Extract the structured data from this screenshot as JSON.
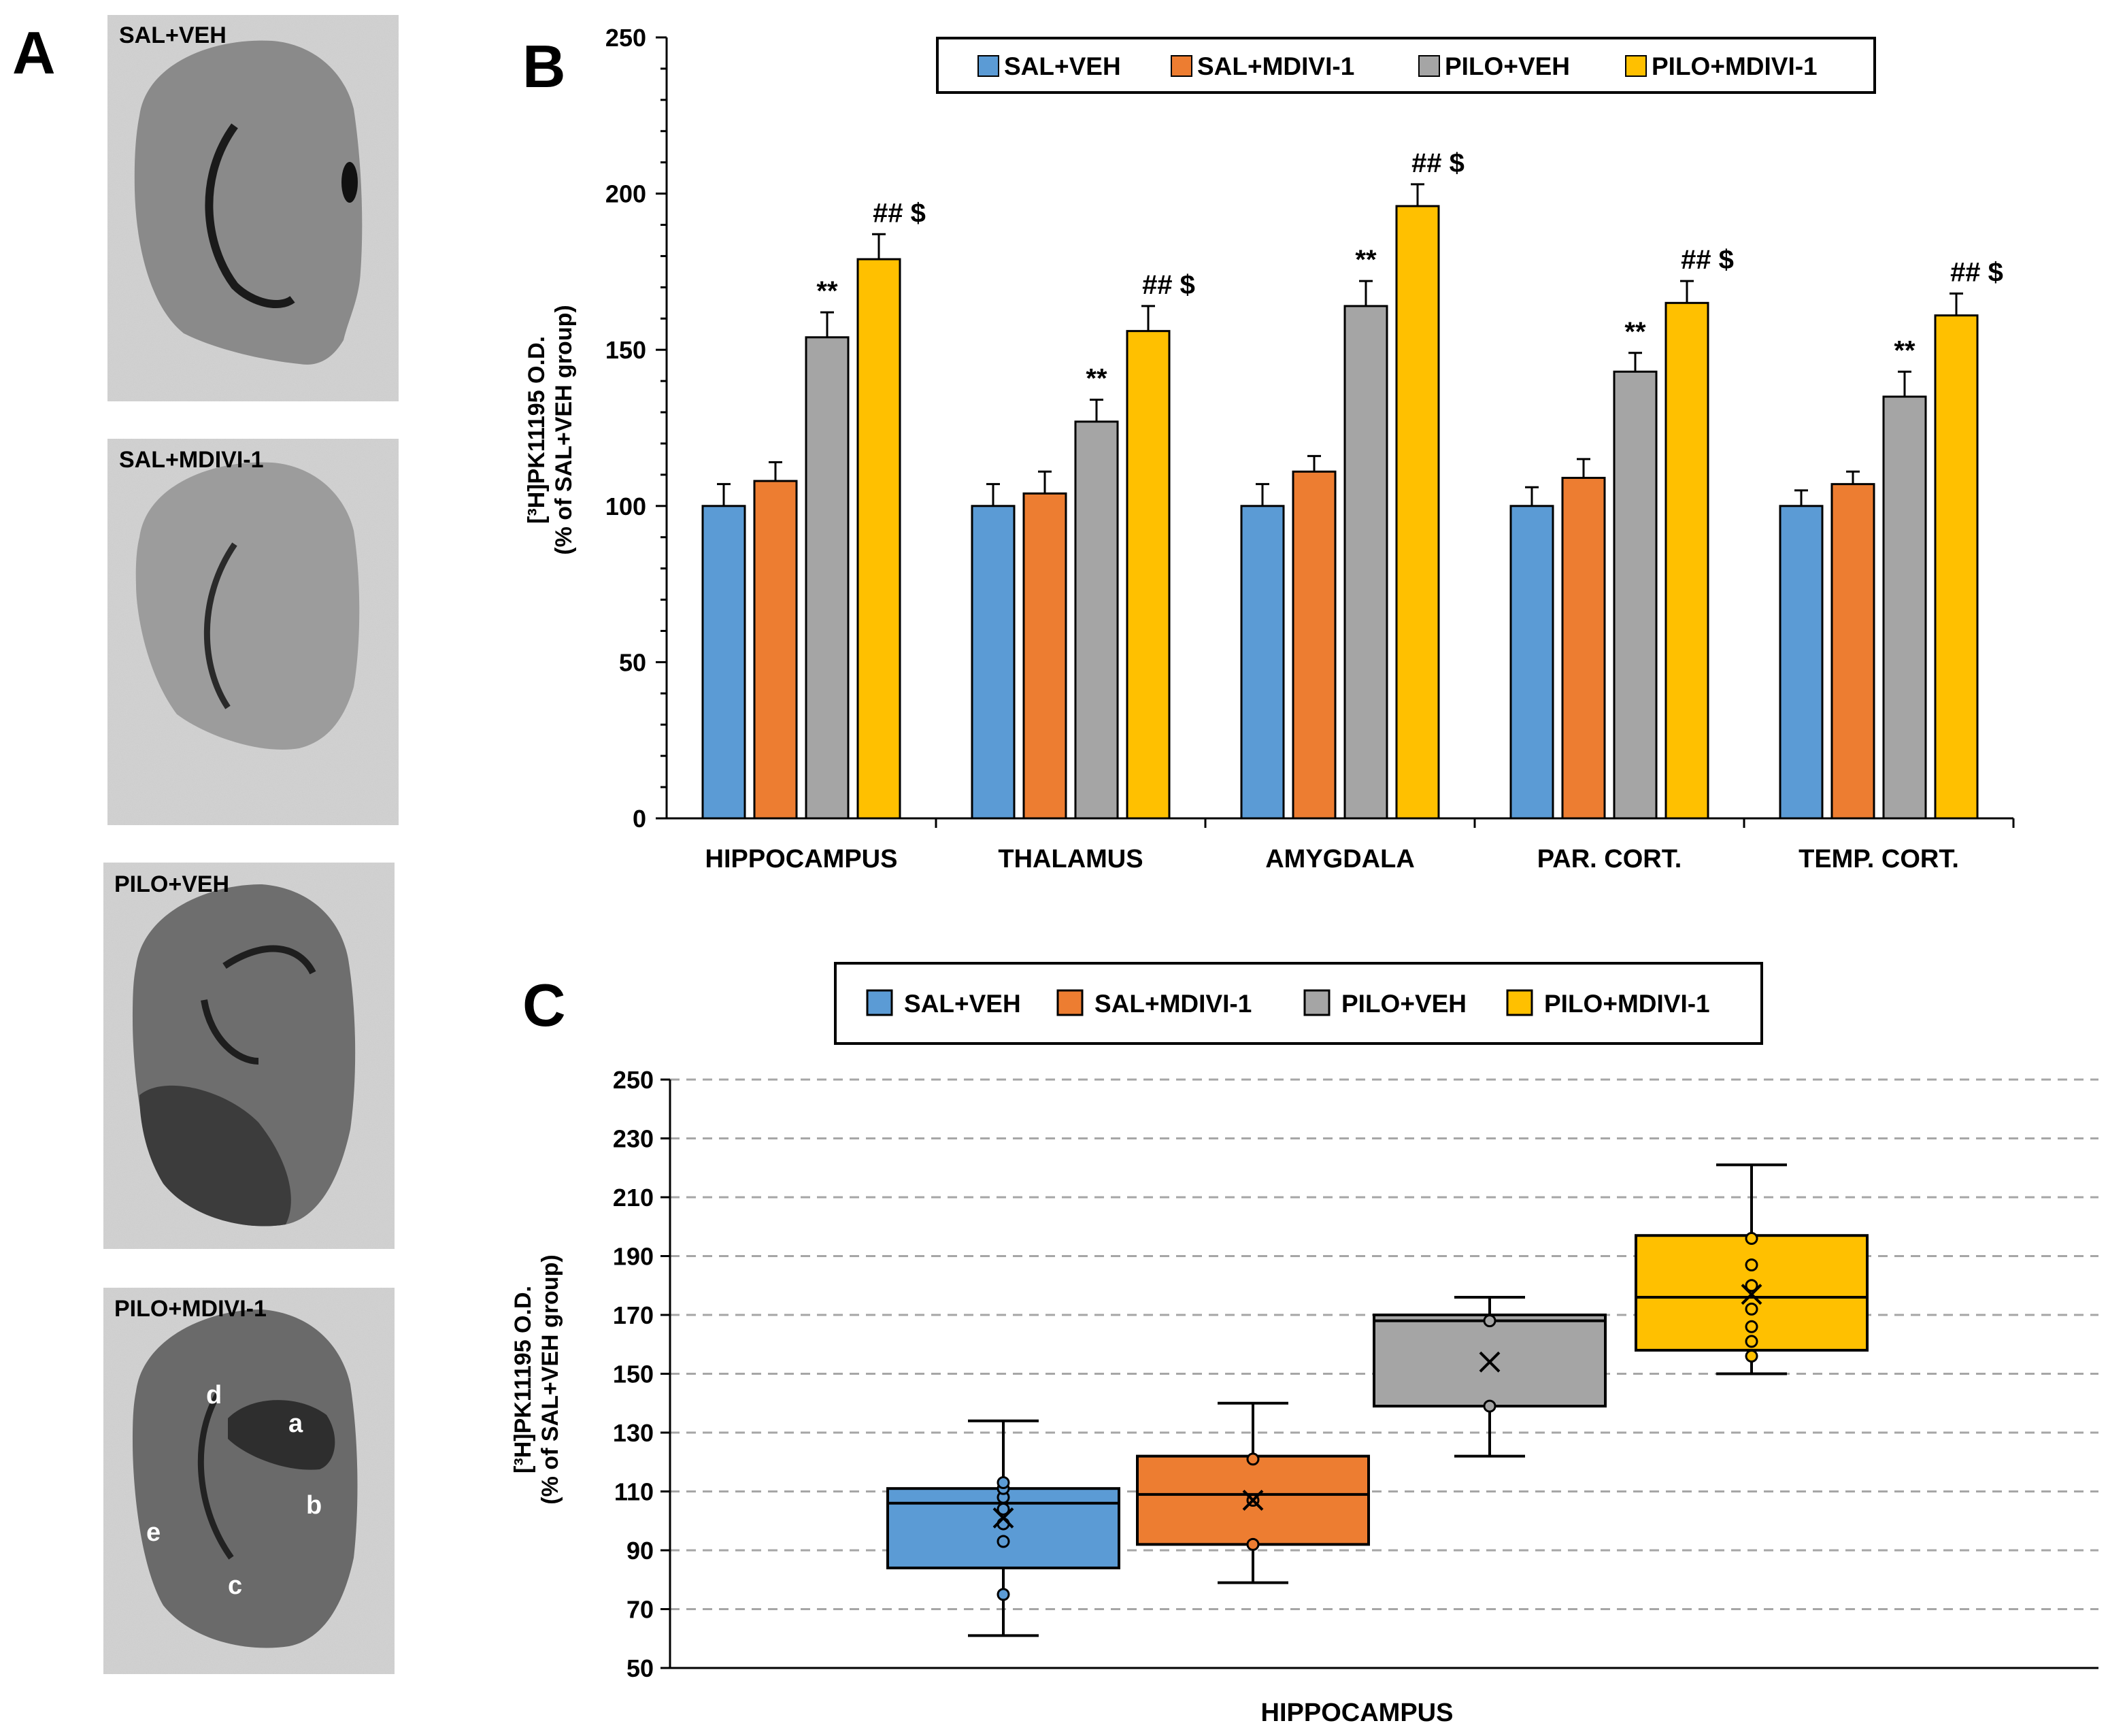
{
  "panel_labels": {
    "a": "A",
    "b": "B",
    "c": "C"
  },
  "micrographs": [
    {
      "label": "SAL+VEH"
    },
    {
      "label": "SAL+MDIVI-1"
    },
    {
      "label": "PILO+VEH"
    },
    {
      "label": "PILO+MDIVI-1",
      "regions": [
        "a",
        "b",
        "c",
        "d",
        "e"
      ]
    }
  ],
  "colors": {
    "SAL+VEH": "#5B9BD5",
    "SAL+MDIVI-1": "#ED7D31",
    "PILO+VEH": "#A5A5A5",
    "PILO+MDIVI-1": "#FFC000"
  },
  "chart_data": [
    {
      "type": "bar",
      "panel": "B",
      "categories": [
        "HIPPOCAMPUS",
        "THALAMUS",
        "AMYGDALA",
        "PAR. CORT.",
        "TEMP. CORT."
      ],
      "series": [
        {
          "name": "SAL+VEH",
          "values": [
            100,
            100,
            100,
            100,
            100
          ],
          "errors": [
            7,
            7,
            7,
            6,
            5
          ]
        },
        {
          "name": "SAL+MDIVI-1",
          "values": [
            108,
            104,
            111,
            109,
            107
          ],
          "errors": [
            6,
            7,
            5,
            6,
            4
          ]
        },
        {
          "name": "PILO+VEH",
          "values": [
            154,
            127,
            164,
            143,
            135
          ],
          "errors": [
            8,
            7,
            8,
            6,
            8
          ]
        },
        {
          "name": "PILO+MDIVI-1",
          "values": [
            179,
            156,
            196,
            165,
            161
          ],
          "errors": [
            8,
            8,
            7,
            7,
            7
          ]
        }
      ],
      "annotations": {
        "PILO+VEH": "**",
        "PILO+MDIVI-1": "## $"
      },
      "ylabel_line1": "[³H]PK11195 O.D.",
      "ylabel_line2": "(% of SAL+VEH group)",
      "ylim": [
        0,
        250
      ],
      "yticks": [
        0,
        50,
        100,
        150,
        200,
        250
      ],
      "legend_position": "top"
    },
    {
      "type": "box",
      "panel": "C",
      "xlabel": "HIPPOCAMPUS",
      "ylabel_line1": "[³H]PK11195 O.D.",
      "ylabel_line2": "(% of SAL+VEH group)",
      "ylim": [
        50,
        250
      ],
      "yticks": [
        50,
        70,
        90,
        110,
        130,
        150,
        170,
        190,
        210,
        230,
        250
      ],
      "grid": true,
      "legend_position": "top",
      "series": [
        {
          "name": "SAL+VEH",
          "min": 61,
          "q1": 84,
          "median": 106,
          "q3": 111,
          "max": 134,
          "mean": 101,
          "points": [
            75,
            93,
            99,
            104,
            108,
            111,
            113
          ]
        },
        {
          "name": "SAL+MDIVI-1",
          "min": 79,
          "q1": 92,
          "median": 109,
          "q3": 122,
          "max": 140,
          "mean": 107,
          "points": [
            92,
            107,
            121
          ]
        },
        {
          "name": "PILO+VEH",
          "min": 122,
          "q1": 139,
          "median": 168,
          "q3": 170,
          "max": 176,
          "mean": 154,
          "points": [
            139,
            168
          ]
        },
        {
          "name": "PILO+MDIVI-1",
          "min": 150,
          "q1": 158,
          "median": 176,
          "q3": 197,
          "max": 221,
          "mean": 177,
          "points": [
            156,
            161,
            166,
            172,
            180,
            187,
            196
          ]
        }
      ]
    }
  ]
}
